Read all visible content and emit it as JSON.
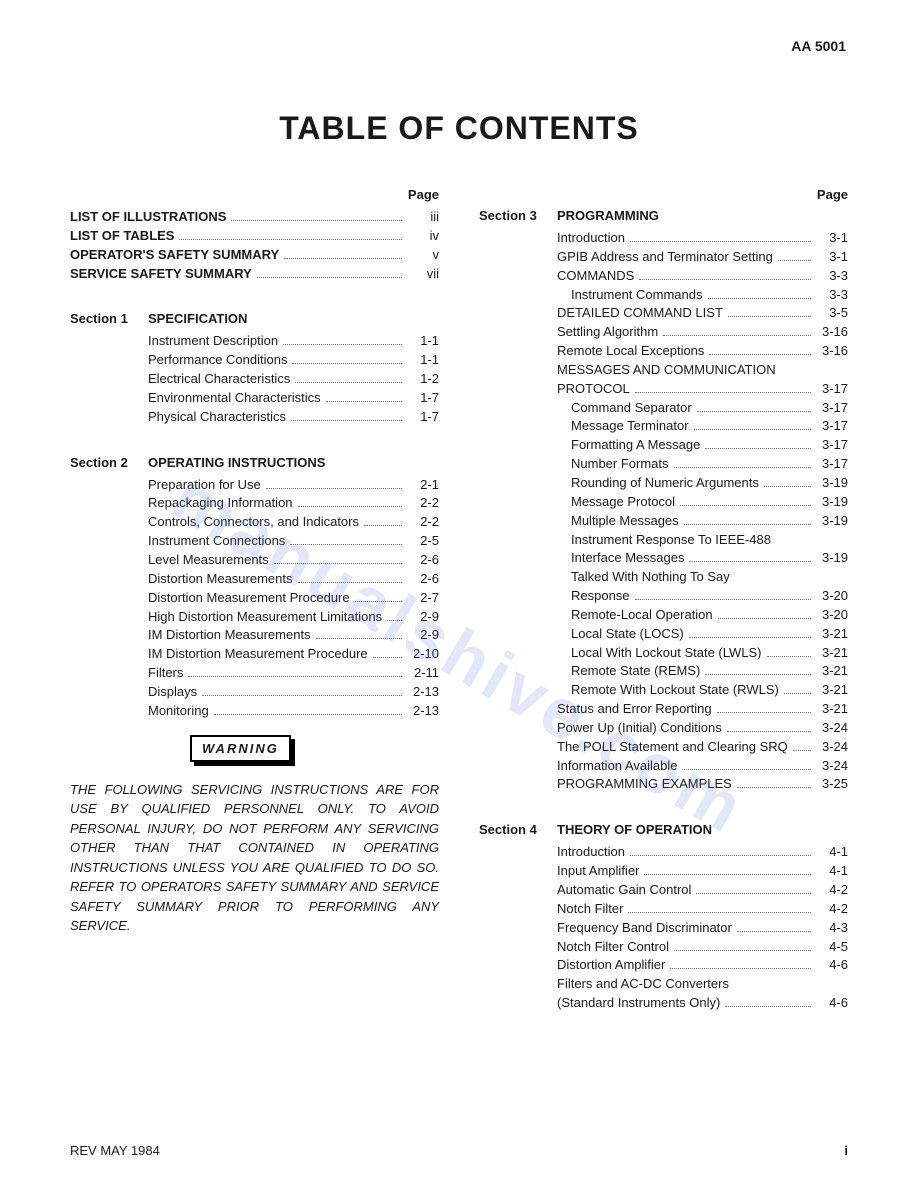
{
  "doc_id": "AA 5001",
  "title": "TABLE OF CONTENTS",
  "page_header": "Page",
  "warning_label": "WARNING",
  "warning_text": "THE FOLLOWING SERVICING INSTRUCTIONS ARE FOR USE BY QUALIFIED PERSONNEL ONLY. TO AVOID PERSONAL INJURY, DO NOT PERFORM ANY SERVICING OTHER THAN THAT CONTAINED IN OPERATING INSTRUCTIONS UNLESS YOU ARE QUALIFIED TO DO SO. REFER TO OPERATORS SAFETY SUMMARY AND SERVICE SAFETY SUMMARY PRIOR TO PERFORMING ANY SERVICE.",
  "footer_left": "REV MAY 1984",
  "footer_right": "i",
  "watermark": "manualshive.com",
  "front_matter": [
    {
      "label": "LIST OF ILLUSTRATIONS",
      "page": "iii"
    },
    {
      "label": "LIST OF TABLES",
      "page": "iv"
    },
    {
      "label": "OPERATOR'S SAFETY SUMMARY",
      "page": "v"
    },
    {
      "label": "SERVICE SAFETY SUMMARY",
      "page": "vii"
    }
  ],
  "sections": {
    "s1": {
      "num": "Section 1",
      "title": "SPECIFICATION",
      "items": [
        {
          "label": "Instrument Description",
          "page": "1-1"
        },
        {
          "label": "Performance Conditions",
          "page": "1-1"
        },
        {
          "label": "Electrical Characteristics",
          "page": "1-2"
        },
        {
          "label": "Environmental Characteristics",
          "page": "1-7"
        },
        {
          "label": "Physical Characteristics",
          "page": "1-7"
        }
      ]
    },
    "s2": {
      "num": "Section 2",
      "title": "OPERATING INSTRUCTIONS",
      "items": [
        {
          "label": "Preparation for Use",
          "page": "2-1"
        },
        {
          "label": "Repackaging Information",
          "page": "2-2"
        },
        {
          "label": "Controls, Connectors, and Indicators",
          "page": "2-2"
        },
        {
          "label": "Instrument Connections",
          "page": "2-5"
        },
        {
          "label": "Level Measurements",
          "page": "2-6"
        },
        {
          "label": "Distortion Measurements",
          "page": "2-6"
        },
        {
          "label": "Distortion Measurement Procedure",
          "page": "2-7"
        },
        {
          "label": "High Distortion Measurement Limitations",
          "page": "2-9"
        },
        {
          "label": "IM Distortion Measurements",
          "page": "2-9"
        },
        {
          "label": "IM Distortion Measurement Procedure",
          "page": "2-10"
        },
        {
          "label": "Filters",
          "page": "2-11"
        },
        {
          "label": "Displays",
          "page": "2-13"
        },
        {
          "label": "Monitoring",
          "page": "2-13"
        }
      ]
    },
    "s3": {
      "num": "Section 3",
      "title": "PROGRAMMING",
      "items": [
        {
          "label": "Introduction",
          "page": "3-1",
          "indent": 0
        },
        {
          "label": "GPIB Address and Terminator Setting",
          "page": "3-1",
          "indent": 0
        },
        {
          "label": "COMMANDS",
          "page": "3-3",
          "indent": 0
        },
        {
          "label": "Instrument Commands",
          "page": "3-3",
          "indent": 1
        },
        {
          "label": "DETAILED COMMAND LIST",
          "page": "3-5",
          "indent": 0
        },
        {
          "label": "Settling Algorithm",
          "page": "3-16",
          "indent": 0
        },
        {
          "label": "Remote Local Exceptions",
          "page": "3-16",
          "indent": 0
        },
        {
          "label": "MESSAGES AND COMMUNICATION",
          "page": "",
          "indent": 0,
          "nopage": true
        },
        {
          "label": "PROTOCOL",
          "page": "3-17",
          "indent": 0
        },
        {
          "label": "Command Separator",
          "page": "3-17",
          "indent": 1
        },
        {
          "label": "Message Terminator",
          "page": "3-17",
          "indent": 1
        },
        {
          "label": "Formatting A Message",
          "page": "3-17",
          "indent": 1
        },
        {
          "label": "Number Formats",
          "page": "3-17",
          "indent": 1
        },
        {
          "label": "Rounding of Numeric Arguments",
          "page": "3-19",
          "indent": 1
        },
        {
          "label": "Message Protocol",
          "page": "3-19",
          "indent": 1
        },
        {
          "label": "Multiple Messages",
          "page": "3-19",
          "indent": 1
        },
        {
          "label": "Instrument Response To IEEE-488",
          "page": "",
          "indent": 1,
          "nopage": true
        },
        {
          "label": "Interface Messages",
          "page": "3-19",
          "indent": 1
        },
        {
          "label": "Talked With Nothing To Say",
          "page": "",
          "indent": 1,
          "nopage": true
        },
        {
          "label": "Response",
          "page": "3-20",
          "indent": 1
        },
        {
          "label": "Remote-Local Operation",
          "page": "3-20",
          "indent": 1
        },
        {
          "label": "Local State (LOCS)",
          "page": "3-21",
          "indent": 1
        },
        {
          "label": "Local With Lockout State (LWLS)",
          "page": "3-21",
          "indent": 1
        },
        {
          "label": "Remote State (REMS)",
          "page": "3-21",
          "indent": 1
        },
        {
          "label": "Remote With Lockout State (RWLS)",
          "page": "3-21",
          "indent": 1
        },
        {
          "label": "Status and Error Reporting",
          "page": "3-21",
          "indent": 0
        },
        {
          "label": "Power Up (Initial) Conditions",
          "page": "3-24",
          "indent": 0
        },
        {
          "label": "The POLL Statement and Clearing SRQ",
          "page": "3-24",
          "indent": 0
        },
        {
          "label": "Information Available",
          "page": "3-24",
          "indent": 0
        },
        {
          "label": "PROGRAMMING EXAMPLES",
          "page": "3-25",
          "indent": 0
        }
      ]
    },
    "s4": {
      "num": "Section 4",
      "title": "THEORY OF OPERATION",
      "items": [
        {
          "label": "Introduction",
          "page": "4-1",
          "indent": 0
        },
        {
          "label": "Input Amplifier",
          "page": "4-1",
          "indent": 0
        },
        {
          "label": "Automatic Gain Control",
          "page": "4-2",
          "indent": 0
        },
        {
          "label": "Notch Filter",
          "page": "4-2",
          "indent": 0
        },
        {
          "label": "Frequency Band Discriminator",
          "page": "4-3",
          "indent": 0
        },
        {
          "label": "Notch Filter Control",
          "page": "4-5",
          "indent": 0
        },
        {
          "label": "Distortion Amplifier",
          "page": "4-6",
          "indent": 0
        },
        {
          "label": "Filters and AC-DC Converters",
          "page": "",
          "indent": 0,
          "nopage": true
        },
        {
          "label": "(Standard Instruments Only)",
          "page": "4-6",
          "indent": 0
        }
      ]
    }
  }
}
